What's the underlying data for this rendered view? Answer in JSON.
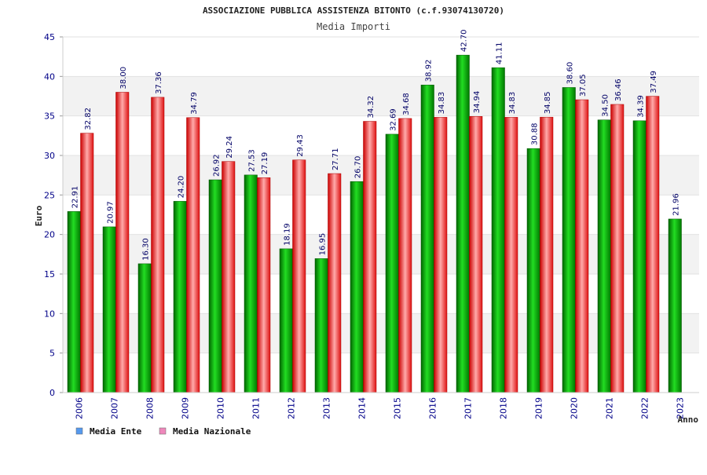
{
  "chart_data": {
    "type": "bar",
    "title": "ASSOCIAZIONE PUBBLICA ASSISTENZA BITONTO (c.f.93074130720)",
    "subtitle": "Media Importi",
    "xlabel": "Anno",
    "ylabel": "Euro",
    "ylim": [
      0,
      45
    ],
    "yticks": [
      0,
      5,
      10,
      15,
      20,
      25,
      30,
      35,
      40,
      45
    ],
    "grid": true,
    "legend_position": "bottom-left",
    "categories": [
      "2006",
      "2007",
      "2008",
      "2009",
      "2010",
      "2011",
      "2012",
      "2013",
      "2014",
      "2015",
      "2016",
      "2017",
      "2018",
      "2019",
      "2020",
      "2021",
      "2022",
      "2023"
    ],
    "series": [
      {
        "name": "Media Ente",
        "color": "#00aa00",
        "legend_color": "#5599ee",
        "values": [
          22.91,
          20.97,
          16.3,
          24.2,
          26.92,
          27.53,
          18.19,
          16.95,
          26.7,
          32.69,
          38.92,
          42.7,
          41.11,
          30.88,
          38.6,
          34.5,
          34.39,
          21.96
        ],
        "labels": [
          "22.91",
          "20.97",
          "16.30",
          "24.20",
          "26.92",
          "27.53",
          "18.19",
          "16.95",
          "26.70",
          "32.69",
          "38.92",
          "42.70",
          "41.11",
          "30.88",
          "38.60",
          "34.50",
          "34.39",
          "21.96"
        ]
      },
      {
        "name": "Media Nazionale",
        "color": "#ee2222",
        "legend_color": "#ee88bb",
        "values": [
          32.82,
          38.0,
          37.36,
          34.79,
          29.24,
          27.19,
          29.43,
          27.71,
          34.32,
          34.68,
          34.83,
          34.94,
          34.83,
          34.85,
          37.05,
          36.46,
          37.49,
          null
        ],
        "labels": [
          "32.82",
          "38.00",
          "37.36",
          "34.79",
          "29.24",
          "27.19",
          "29.43",
          "27.71",
          "34.32",
          "34.68",
          "34.83",
          "34.94",
          "34.83",
          "34.85",
          "37.05",
          "36.46",
          "37.49",
          ""
        ]
      }
    ]
  }
}
